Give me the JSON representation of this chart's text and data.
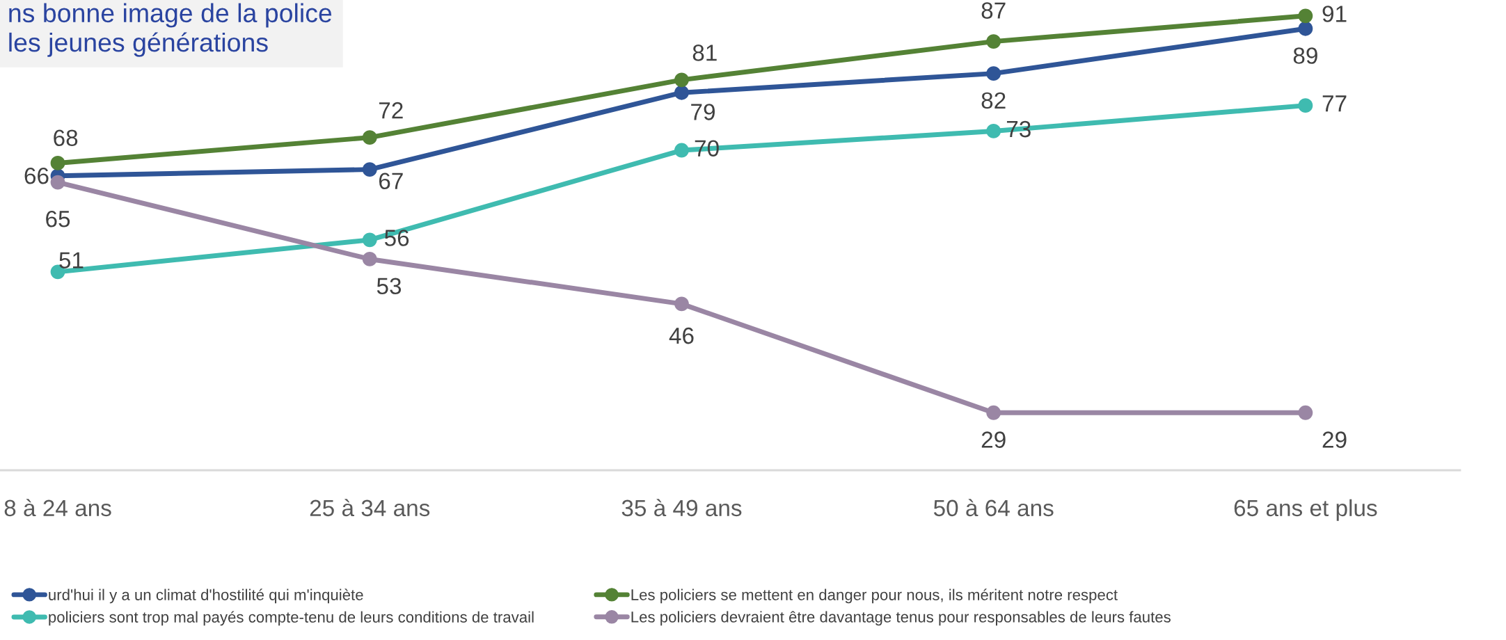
{
  "chart_data": {
    "type": "line",
    "title": "ns bonne image de la police\nles jeunes générations",
    "categories": [
      "8 à 24 ans",
      "25 à 34 ans",
      "35 à 49 ans",
      "50 à 64 ans",
      "65 ans et plus"
    ],
    "series": [
      {
        "name": "urd'hui il y a un climat d'hostilité qui m'inquiète",
        "color": "#2f5597",
        "values": [
          66,
          67,
          79,
          82,
          89
        ]
      },
      {
        "name": "policiers sont trop mal payés compte-tenu de leurs conditions de travail",
        "color": "#3fbbb0",
        "values": [
          51,
          56,
          70,
          73,
          77
        ]
      },
      {
        "name": "Les policiers se mettent en danger pour nous, ils méritent notre respect",
        "color": "#548235",
        "values": [
          68,
          72,
          81,
          87,
          91
        ]
      },
      {
        "name": "Les policiers devraient être davantage tenus pour responsables de leurs fautes",
        "color": "#9a86a4",
        "values": [
          65,
          53,
          46,
          29,
          29
        ]
      }
    ],
    "data_labels": true,
    "marker": "circle",
    "line_style": "solid",
    "grid": false,
    "legend": "bottom"
  }
}
